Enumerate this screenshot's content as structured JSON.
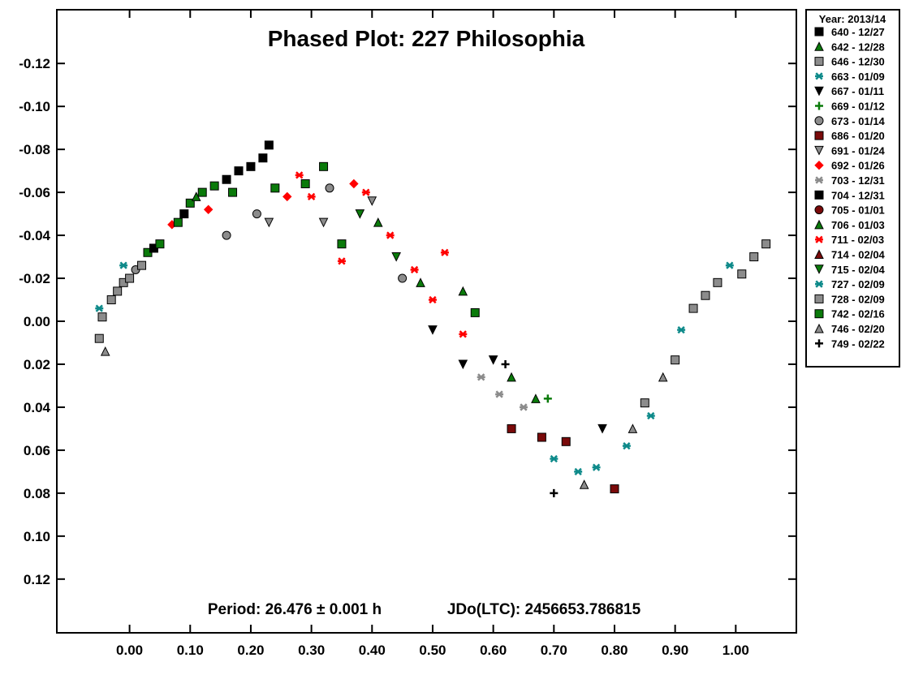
{
  "chart_data": {
    "type": "scatter",
    "title": "Phased Plot: 227 Philosophia",
    "period_text": "Period: 26.476 ± 0.001 h",
    "epoch_text": "JDo(LTC): 2456653.786815",
    "xlabel": "",
    "ylabel": "",
    "xlim": [
      -0.12,
      1.1
    ],
    "ylim": [
      -0.145,
      0.145
    ],
    "y_inverted": true,
    "x_ticks": [
      "0.00",
      "0.10",
      "0.20",
      "0.30",
      "0.40",
      "0.50",
      "0.60",
      "0.70",
      "0.80",
      "0.90",
      "1.00"
    ],
    "y_ticks": [
      "-0.12",
      "-0.10",
      "-0.08",
      "-0.06",
      "-0.04",
      "-0.02",
      "0.00",
      "0.02",
      "0.04",
      "0.06",
      "0.08",
      "0.10",
      "0.12"
    ],
    "grid": false,
    "legend_title": "Year: 2013/14",
    "legend_position": "right",
    "series": [
      {
        "name": "640 - 12/27",
        "marker": "square",
        "color": "#000000"
      },
      {
        "name": "642 - 12/28",
        "marker": "triangle",
        "color": "#0a7a0a"
      },
      {
        "name": "646 - 12/30",
        "marker": "square",
        "color": "#8c8c8c"
      },
      {
        "name": "663 - 01/09",
        "marker": "asterisk",
        "color": "#0e8a8a"
      },
      {
        "name": "667 - 01/11",
        "marker": "triangle-down",
        "color": "#000000"
      },
      {
        "name": "669 - 01/12",
        "marker": "plus",
        "color": "#0a7a0a"
      },
      {
        "name": "673 - 01/14",
        "marker": "circle",
        "color": "#8c8c8c"
      },
      {
        "name": "686 - 01/20",
        "marker": "square",
        "color": "#7a0a0a"
      },
      {
        "name": "691 - 01/24",
        "marker": "triangle-down",
        "color": "#8c8c8c"
      },
      {
        "name": "692 - 01/26",
        "marker": "diamond",
        "color": "#ff0000"
      },
      {
        "name": "703 - 12/31",
        "marker": "asterisk",
        "color": "#8c8c8c"
      },
      {
        "name": "704 - 12/31",
        "marker": "square",
        "color": "#000000"
      },
      {
        "name": "705 - 01/01",
        "marker": "circle",
        "color": "#7a0a0a"
      },
      {
        "name": "706 - 01/03",
        "marker": "triangle",
        "color": "#0a7a0a"
      },
      {
        "name": "711 - 02/03",
        "marker": "asterisk",
        "color": "#ff0000"
      },
      {
        "name": "714 - 02/04",
        "marker": "triangle",
        "color": "#7a0a0a"
      },
      {
        "name": "715 - 02/04",
        "marker": "triangle-down",
        "color": "#0a7a0a"
      },
      {
        "name": "727 - 02/09",
        "marker": "asterisk",
        "color": "#0e8a8a"
      },
      {
        "name": "728 - 02/09",
        "marker": "square",
        "color": "#8c8c8c"
      },
      {
        "name": "742 - 02/16",
        "marker": "square",
        "color": "#0a7a0a"
      },
      {
        "name": "746 - 02/20",
        "marker": "triangle",
        "color": "#8c8c8c"
      },
      {
        "name": "749 - 02/22",
        "marker": "plus",
        "color": "#000000"
      }
    ],
    "points": [
      {
        "series": 18,
        "x": -0.05,
        "y": 0.008
      },
      {
        "series": 18,
        "x": -0.045,
        "y": -0.002
      },
      {
        "series": 3,
        "x": -0.05,
        "y": -0.006
      },
      {
        "series": 20,
        "x": -0.04,
        "y": 0.014
      },
      {
        "series": 18,
        "x": -0.03,
        "y": -0.01
      },
      {
        "series": 2,
        "x": -0.02,
        "y": -0.014
      },
      {
        "series": 18,
        "x": -0.01,
        "y": -0.018
      },
      {
        "series": 3,
        "x": -0.01,
        "y": -0.026
      },
      {
        "series": 18,
        "x": 0.0,
        "y": -0.02
      },
      {
        "series": 6,
        "x": 0.01,
        "y": -0.024
      },
      {
        "series": 18,
        "x": 0.02,
        "y": -0.026
      },
      {
        "series": 19,
        "x": 0.03,
        "y": -0.032
      },
      {
        "series": 0,
        "x": 0.04,
        "y": -0.034
      },
      {
        "series": 19,
        "x": 0.05,
        "y": -0.036
      },
      {
        "series": 9,
        "x": 0.07,
        "y": -0.045
      },
      {
        "series": 19,
        "x": 0.08,
        "y": -0.046
      },
      {
        "series": 0,
        "x": 0.09,
        "y": -0.05
      },
      {
        "series": 19,
        "x": 0.1,
        "y": -0.055
      },
      {
        "series": 1,
        "x": 0.11,
        "y": -0.058
      },
      {
        "series": 19,
        "x": 0.12,
        "y": -0.06
      },
      {
        "series": 9,
        "x": 0.13,
        "y": -0.052
      },
      {
        "series": 19,
        "x": 0.14,
        "y": -0.063
      },
      {
        "series": 0,
        "x": 0.16,
        "y": -0.066
      },
      {
        "series": 6,
        "x": 0.16,
        "y": -0.04
      },
      {
        "series": 19,
        "x": 0.17,
        "y": -0.06
      },
      {
        "series": 0,
        "x": 0.18,
        "y": -0.07
      },
      {
        "series": 0,
        "x": 0.2,
        "y": -0.072
      },
      {
        "series": 0,
        "x": 0.22,
        "y": -0.076
      },
      {
        "series": 11,
        "x": 0.23,
        "y": -0.082
      },
      {
        "series": 6,
        "x": 0.21,
        "y": -0.05
      },
      {
        "series": 8,
        "x": 0.23,
        "y": -0.046
      },
      {
        "series": 19,
        "x": 0.24,
        "y": -0.062
      },
      {
        "series": 9,
        "x": 0.26,
        "y": -0.058
      },
      {
        "series": 14,
        "x": 0.28,
        "y": -0.068
      },
      {
        "series": 19,
        "x": 0.29,
        "y": -0.064
      },
      {
        "series": 14,
        "x": 0.3,
        "y": -0.058
      },
      {
        "series": 19,
        "x": 0.32,
        "y": -0.072
      },
      {
        "series": 6,
        "x": 0.33,
        "y": -0.062
      },
      {
        "series": 8,
        "x": 0.32,
        "y": -0.046
      },
      {
        "series": 19,
        "x": 0.35,
        "y": -0.036
      },
      {
        "series": 14,
        "x": 0.35,
        "y": -0.028
      },
      {
        "series": 9,
        "x": 0.37,
        "y": -0.064
      },
      {
        "series": 16,
        "x": 0.38,
        "y": -0.05
      },
      {
        "series": 14,
        "x": 0.39,
        "y": -0.06
      },
      {
        "series": 8,
        "x": 0.4,
        "y": -0.056
      },
      {
        "series": 13,
        "x": 0.41,
        "y": -0.046
      },
      {
        "series": 14,
        "x": 0.43,
        "y": -0.04
      },
      {
        "series": 16,
        "x": 0.44,
        "y": -0.03
      },
      {
        "series": 6,
        "x": 0.45,
        "y": -0.02
      },
      {
        "series": 14,
        "x": 0.47,
        "y": -0.024
      },
      {
        "series": 13,
        "x": 0.48,
        "y": -0.018
      },
      {
        "series": 14,
        "x": 0.5,
        "y": -0.01
      },
      {
        "series": 4,
        "x": 0.5,
        "y": 0.004
      },
      {
        "series": 14,
        "x": 0.52,
        "y": -0.032
      },
      {
        "series": 13,
        "x": 0.55,
        "y": -0.014
      },
      {
        "series": 14,
        "x": 0.55,
        "y": 0.006
      },
      {
        "series": 19,
        "x": 0.57,
        "y": -0.004
      },
      {
        "series": 4,
        "x": 0.55,
        "y": 0.02
      },
      {
        "series": 10,
        "x": 0.58,
        "y": 0.026
      },
      {
        "series": 4,
        "x": 0.6,
        "y": 0.018
      },
      {
        "series": 21,
        "x": 0.62,
        "y": 0.02
      },
      {
        "series": 10,
        "x": 0.61,
        "y": 0.034
      },
      {
        "series": 13,
        "x": 0.63,
        "y": 0.026
      },
      {
        "series": 7,
        "x": 0.63,
        "y": 0.05
      },
      {
        "series": 10,
        "x": 0.65,
        "y": 0.04
      },
      {
        "series": 1,
        "x": 0.67,
        "y": 0.036
      },
      {
        "series": 7,
        "x": 0.68,
        "y": 0.054
      },
      {
        "series": 5,
        "x": 0.69,
        "y": 0.036
      },
      {
        "series": 17,
        "x": 0.7,
        "y": 0.064
      },
      {
        "series": 21,
        "x": 0.7,
        "y": 0.08
      },
      {
        "series": 7,
        "x": 0.72,
        "y": 0.056
      },
      {
        "series": 17,
        "x": 0.74,
        "y": 0.07
      },
      {
        "series": 20,
        "x": 0.75,
        "y": 0.076
      },
      {
        "series": 17,
        "x": 0.77,
        "y": 0.068
      },
      {
        "series": 4,
        "x": 0.78,
        "y": 0.05
      },
      {
        "series": 7,
        "x": 0.8,
        "y": 0.078
      },
      {
        "series": 17,
        "x": 0.82,
        "y": 0.058
      },
      {
        "series": 20,
        "x": 0.83,
        "y": 0.05
      },
      {
        "series": 18,
        "x": 0.85,
        "y": 0.038
      },
      {
        "series": 17,
        "x": 0.86,
        "y": 0.044
      },
      {
        "series": 20,
        "x": 0.88,
        "y": 0.026
      },
      {
        "series": 18,
        "x": 0.9,
        "y": 0.018
      },
      {
        "series": 17,
        "x": 0.91,
        "y": 0.004
      },
      {
        "series": 18,
        "x": 0.93,
        "y": -0.006
      },
      {
        "series": 2,
        "x": 0.95,
        "y": -0.012
      },
      {
        "series": 18,
        "x": 0.97,
        "y": -0.018
      },
      {
        "series": 17,
        "x": 0.99,
        "y": -0.026
      },
      {
        "series": 18,
        "x": 1.01,
        "y": -0.022
      },
      {
        "series": 2,
        "x": 1.03,
        "y": -0.03
      },
      {
        "series": 18,
        "x": 1.05,
        "y": -0.036
      }
    ]
  }
}
